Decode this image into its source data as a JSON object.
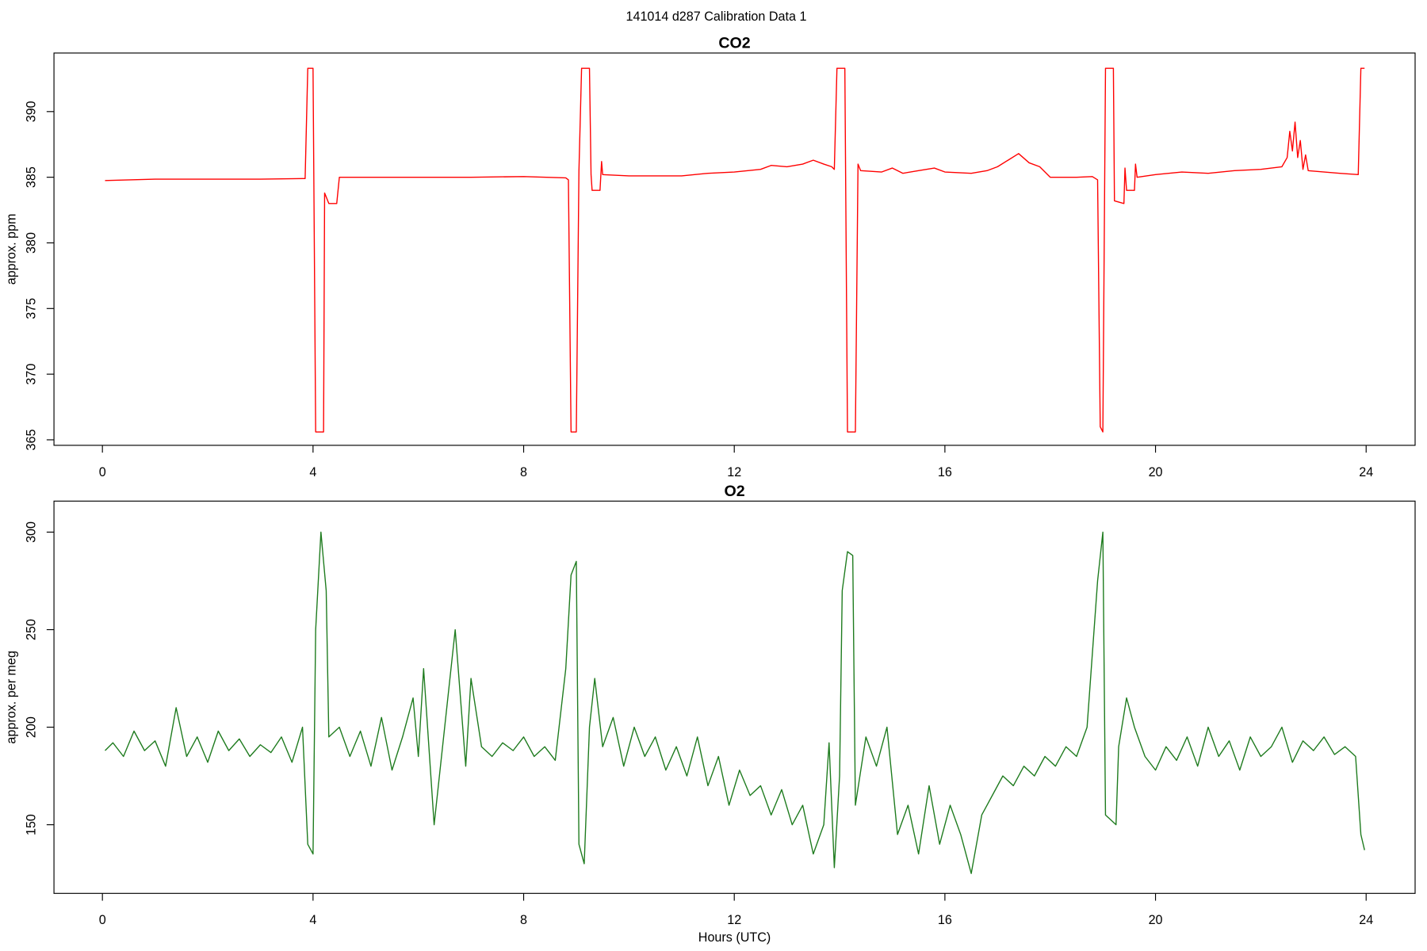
{
  "title": "141014   d287   Calibration Data 1",
  "chart_data": [
    {
      "type": "line",
      "title": "CO2",
      "y_label": "approx. ppm",
      "xlim": [
        -0.92,
        24.93
      ],
      "xticks": [
        0,
        4,
        8,
        12,
        16,
        20,
        24
      ],
      "ylim": [
        364.58,
        394.46
      ],
      "yticks": [
        365,
        370,
        375,
        380,
        385,
        390
      ],
      "series": [
        {
          "color": "#ff0000",
          "x": [
            0.05,
            1,
            2,
            3,
            3.85,
            3.9,
            4.0,
            4.05,
            4.2,
            4.22,
            4.3,
            4.45,
            4.5,
            6,
            7,
            8,
            8.8,
            8.85,
            8.9,
            9.0,
            9.05,
            9.1,
            9.25,
            9.28,
            9.3,
            9.45,
            9.48,
            9.5,
            10,
            11,
            11.5,
            12,
            12.5,
            12.7,
            13,
            13.3,
            13.5,
            13.7,
            13.85,
            13.9,
            13.95,
            14.1,
            14.15,
            14.3,
            14.35,
            14.4,
            14.8,
            15,
            15.2,
            15.5,
            15.8,
            16,
            16.5,
            16.8,
            17,
            17.2,
            17.4,
            17.6,
            17.8,
            18,
            18.5,
            18.8,
            18.9,
            18.95,
            19.0,
            19.05,
            19.2,
            19.22,
            19.4,
            19.42,
            19.45,
            19.6,
            19.62,
            19.65,
            20,
            20.5,
            21,
            21.5,
            22,
            22.4,
            22.5,
            22.55,
            22.6,
            22.65,
            22.7,
            22.75,
            22.8,
            22.85,
            22.9,
            23.5,
            23.85,
            23.9,
            23.97
          ],
          "values": [
            384.75,
            384.85,
            384.85,
            384.85,
            384.9,
            393.3,
            393.3,
            365.6,
            365.6,
            383.8,
            383.0,
            383.0,
            385.0,
            385.0,
            385.0,
            385.05,
            384.95,
            384.8,
            365.6,
            365.6,
            385.5,
            393.3,
            393.3,
            385.2,
            384.0,
            384.0,
            386.2,
            385.2,
            385.1,
            385.1,
            385.3,
            385.4,
            385.6,
            385.9,
            385.8,
            386.0,
            386.3,
            386.0,
            385.8,
            385.6,
            393.3,
            393.3,
            365.6,
            365.6,
            386.0,
            385.5,
            385.4,
            385.7,
            385.3,
            385.5,
            385.7,
            385.4,
            385.3,
            385.5,
            385.8,
            386.3,
            386.8,
            386.1,
            385.8,
            385.0,
            385.0,
            385.05,
            384.8,
            366,
            365.6,
            393.3,
            393.3,
            383.2,
            383.0,
            385.7,
            384.0,
            384.0,
            386.0,
            385.0,
            385.2,
            385.4,
            385.3,
            385.5,
            385.6,
            385.8,
            386.5,
            388.5,
            387.0,
            389.2,
            386.5,
            387.8,
            385.6,
            386.7,
            385.5,
            385.3,
            385.2,
            393.3,
            393.3
          ]
        }
      ]
    },
    {
      "type": "line",
      "title": "O2",
      "y_label": "approx. per meg",
      "x_label": "Hours (UTC)",
      "xlim": [
        -0.92,
        24.93
      ],
      "xticks": [
        0,
        4,
        8,
        12,
        16,
        20,
        24
      ],
      "ylim": [
        114.8,
        315.9
      ],
      "yticks": [
        150,
        200,
        250,
        300
      ],
      "series": [
        {
          "color": "#1e7b1e",
          "x": [
            0.05,
            0.2,
            0.4,
            0.6,
            0.8,
            1.0,
            1.2,
            1.4,
            1.6,
            1.8,
            2.0,
            2.2,
            2.4,
            2.6,
            2.8,
            3.0,
            3.2,
            3.4,
            3.6,
            3.8,
            3.9,
            4.0,
            4.05,
            4.15,
            4.25,
            4.3,
            4.5,
            4.7,
            4.9,
            5.1,
            5.3,
            5.5,
            5.7,
            5.9,
            6.0,
            6.1,
            6.3,
            6.5,
            6.7,
            6.9,
            7.0,
            7.2,
            7.4,
            7.6,
            7.8,
            8.0,
            8.2,
            8.4,
            8.6,
            8.8,
            8.9,
            9.0,
            9.05,
            9.15,
            9.25,
            9.35,
            9.5,
            9.7,
            9.9,
            10.1,
            10.3,
            10.5,
            10.7,
            10.9,
            11.1,
            11.3,
            11.5,
            11.7,
            11.9,
            12.1,
            12.3,
            12.5,
            12.7,
            12.9,
            13.1,
            13.3,
            13.5,
            13.7,
            13.8,
            13.9,
            14.0,
            14.05,
            14.15,
            14.25,
            14.3,
            14.5,
            14.7,
            14.9,
            15.1,
            15.3,
            15.5,
            15.7,
            15.9,
            16.1,
            16.3,
            16.5,
            16.7,
            16.9,
            17.1,
            17.3,
            17.5,
            17.7,
            17.9,
            18.1,
            18.3,
            18.5,
            18.7,
            18.9,
            19.0,
            19.05,
            19.25,
            19.3,
            19.45,
            19.6,
            19.8,
            20.0,
            20.2,
            20.4,
            20.6,
            20.8,
            21.0,
            21.2,
            21.4,
            21.6,
            21.8,
            22.0,
            22.2,
            22.4,
            22.6,
            22.8,
            23.0,
            23.2,
            23.4,
            23.6,
            23.8,
            23.9,
            23.97
          ],
          "values": [
            188,
            192,
            185,
            198,
            188,
            193,
            180,
            210,
            185,
            195,
            182,
            198,
            188,
            194,
            185,
            191,
            187,
            195,
            182,
            200,
            140,
            135,
            250,
            300,
            270,
            195,
            200,
            185,
            198,
            180,
            205,
            178,
            195,
            215,
            185,
            230,
            150,
            200,
            250,
            180,
            225,
            190,
            185,
            192,
            188,
            195,
            185,
            190,
            183,
            230,
            278,
            285,
            140,
            130,
            200,
            225,
            190,
            205,
            180,
            200,
            185,
            195,
            178,
            190,
            175,
            195,
            170,
            185,
            160,
            178,
            165,
            170,
            155,
            168,
            150,
            160,
            135,
            150,
            192,
            128,
            175,
            270,
            290,
            288,
            160,
            195,
            180,
            200,
            145,
            160,
            135,
            170,
            140,
            160,
            145,
            125,
            155,
            165,
            175,
            170,
            180,
            175,
            185,
            180,
            190,
            185,
            200,
            275,
            300,
            155,
            150,
            190,
            215,
            200,
            185,
            178,
            190,
            183,
            195,
            180,
            200,
            185,
            193,
            178,
            195,
            185,
            190,
            200,
            182,
            193,
            188,
            195,
            186,
            190,
            185,
            145,
            137
          ]
        }
      ]
    }
  ]
}
